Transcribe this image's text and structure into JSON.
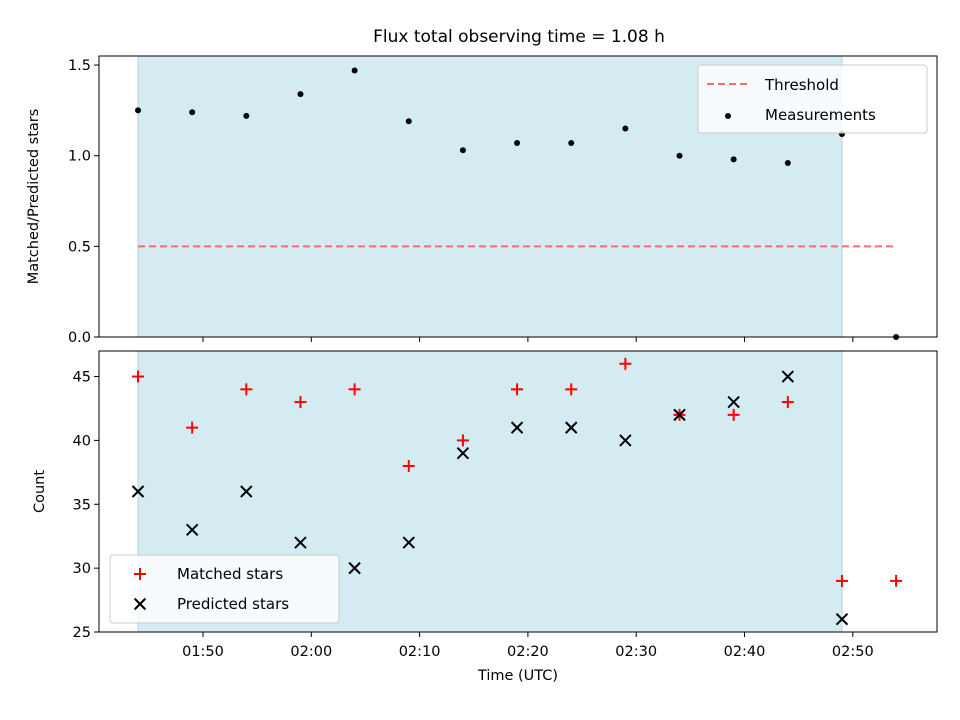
{
  "title": "Flux total observing time = 1.08 h",
  "colors": {
    "shade": "#add8e6",
    "threshold": "#ff6b6b",
    "measurement": "#000000",
    "matched": "#ff0000",
    "predicted": "#000000"
  },
  "chart_data": [
    {
      "type": "scatter",
      "title": "Flux total observing time = 1.08 h",
      "ylabel": "Matched/Predicted stars",
      "xlabel": "",
      "ylim": [
        0,
        1.55
      ],
      "yticks": [
        "0.0",
        "0.5",
        "1.0",
        "1.5"
      ],
      "xticks": [
        "01:50",
        "02:00",
        "02:10",
        "02:20",
        "02:30",
        "02:40",
        "02:50"
      ],
      "shaded_span": [
        "01:44",
        "02:49"
      ],
      "legend_position": "top-right",
      "threshold": {
        "name": "Threshold",
        "value": 0.5,
        "x": [
          "01:44",
          "02:54"
        ]
      },
      "series": [
        {
          "name": "Measurements",
          "x": [
            "01:44",
            "01:49",
            "01:54",
            "01:59",
            "02:04",
            "02:09",
            "02:14",
            "02:19",
            "02:24",
            "02:29",
            "02:34",
            "02:39",
            "02:44",
            "02:49",
            "02:54"
          ],
          "values": [
            1.25,
            1.24,
            1.22,
            1.34,
            1.47,
            1.19,
            1.03,
            1.07,
            1.07,
            1.15,
            1.0,
            0.98,
            0.96,
            1.12,
            0.0
          ]
        }
      ]
    },
    {
      "type": "scatter",
      "ylabel": "Count",
      "xlabel": "Time (UTC)",
      "ylim": [
        25,
        47
      ],
      "yticks": [
        "25",
        "30",
        "35",
        "40",
        "45"
      ],
      "xticks": [
        "01:50",
        "02:00",
        "02:10",
        "02:20",
        "02:30",
        "02:40",
        "02:50"
      ],
      "shaded_span": [
        "01:44",
        "02:49"
      ],
      "legend_position": "bottom-left",
      "series": [
        {
          "name": "Matched stars",
          "x": [
            "01:44",
            "01:49",
            "01:54",
            "01:59",
            "02:04",
            "02:09",
            "02:14",
            "02:19",
            "02:24",
            "02:29",
            "02:34",
            "02:39",
            "02:44",
            "02:49",
            "02:54"
          ],
          "values": [
            45,
            41,
            44,
            43,
            44,
            38,
            40,
            44,
            44,
            46,
            42,
            42,
            43,
            29,
            29
          ]
        },
        {
          "name": "Predicted stars",
          "x": [
            "01:44",
            "01:49",
            "01:54",
            "01:59",
            "02:04",
            "02:09",
            "02:14",
            "02:19",
            "02:24",
            "02:29",
            "02:34",
            "02:39",
            "02:44",
            "02:49"
          ],
          "values": [
            36,
            33,
            36,
            32,
            30,
            32,
            39,
            41,
            41,
            40,
            42,
            43,
            45,
            26
          ]
        }
      ]
    }
  ]
}
